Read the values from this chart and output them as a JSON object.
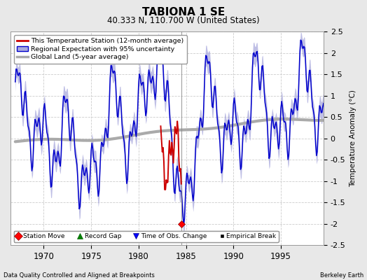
{
  "title": "TABIONA 1 SE",
  "subtitle": "40.333 N, 110.700 W (United States)",
  "ylabel": "Temperature Anomaly (°C)",
  "footer_left": "Data Quality Controlled and Aligned at Breakpoints",
  "footer_right": "Berkeley Earth",
  "xlim": [
    1966.5,
    1999.5
  ],
  "ylim": [
    -2.5,
    2.5
  ],
  "yticks": [
    -2.5,
    -2,
    -1.5,
    -1,
    -0.5,
    0,
    0.5,
    1,
    1.5,
    2,
    2.5
  ],
  "xticks": [
    1970,
    1975,
    1980,
    1985,
    1990,
    1995
  ],
  "station_move_x": 1984.5,
  "station_move_y": -2.0,
  "vertical_line_x": 1984.5,
  "legend1_labels": [
    "This Temperature Station (12-month average)",
    "Regional Expectation with 95% uncertainty",
    "Global Land (5-year average)"
  ],
  "legend2_labels": [
    "Station Move",
    "Record Gap",
    "Time of Obs. Change",
    "Empirical Break"
  ],
  "bg_color": "#e8e8e8",
  "plot_bg_color": "#ffffff",
  "regional_color": "#0000cc",
  "regional_fill_color": "#aaaadd",
  "station_color": "#cc0000",
  "global_color": "#aaaaaa",
  "grid_color": "#cccccc"
}
